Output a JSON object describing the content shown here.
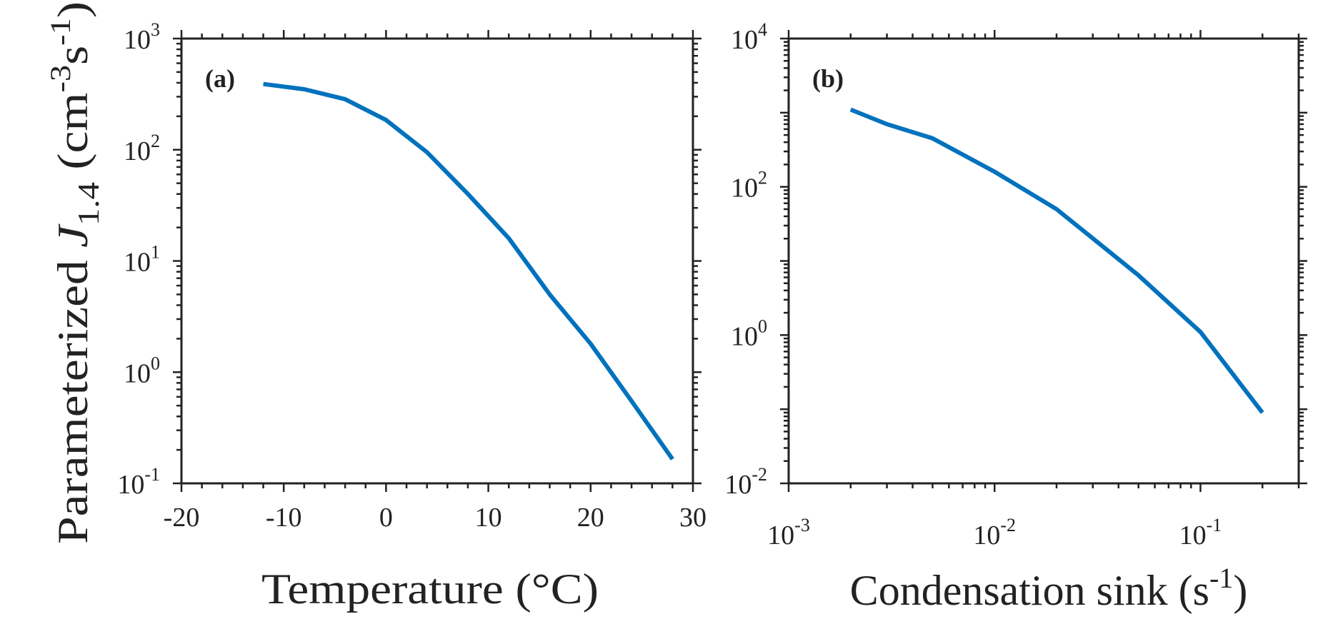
{
  "y_label": {
    "main": "Parameterized ",
    "var": "J",
    "sub": "1.4",
    "unit_open": " (cm",
    "unit_exp1": "-3",
    "unit_mid": "s",
    "unit_exp2": "-1",
    "unit_close": ")"
  },
  "line_color": "#0072BD",
  "chart_data": [
    {
      "type": "line",
      "panel_label": "(a)",
      "xlabel": "Temperature (°C)",
      "ylabel": "Parameterized J1.4 (cm-3 s-1)",
      "xscale": "linear",
      "yscale": "log",
      "xlim": [
        -20,
        30
      ],
      "ylim": [
        0.1,
        1000
      ],
      "xticks": [
        -20,
        -10,
        0,
        10,
        20,
        30
      ],
      "xtick_labels": [
        "-20",
        "-10",
        "0",
        "10",
        "20",
        "30"
      ],
      "yticks_exp": [
        -1,
        0,
        1,
        2,
        3
      ],
      "x": [
        -12,
        -8,
        -4,
        0,
        4,
        8,
        12,
        16,
        20,
        24,
        28
      ],
      "y": [
        390,
        350,
        285,
        185,
        95,
        40,
        16,
        5.0,
        1.8,
        0.55,
        0.165
      ],
      "grid": false
    },
    {
      "type": "line",
      "panel_label": "(b)",
      "xlabel": "Condensation sink (s-1)",
      "xlabel_main": "Condensation sink (s",
      "xlabel_exp": "-1",
      "xlabel_close": ")",
      "xscale": "log",
      "yscale": "log",
      "xlim": [
        0.001,
        0.3
      ],
      "ylim": [
        0.01,
        10000
      ],
      "xticks_exp": [
        -3,
        -2,
        -1
      ],
      "yticks_exp": [
        -2,
        0,
        2,
        4
      ],
      "x": [
        0.002,
        0.003,
        0.005,
        0.01,
        0.02,
        0.05,
        0.1,
        0.2
      ],
      "y": [
        1100,
        700,
        450,
        160,
        50,
        6.4,
        1.1,
        0.09
      ],
      "grid": false
    }
  ]
}
